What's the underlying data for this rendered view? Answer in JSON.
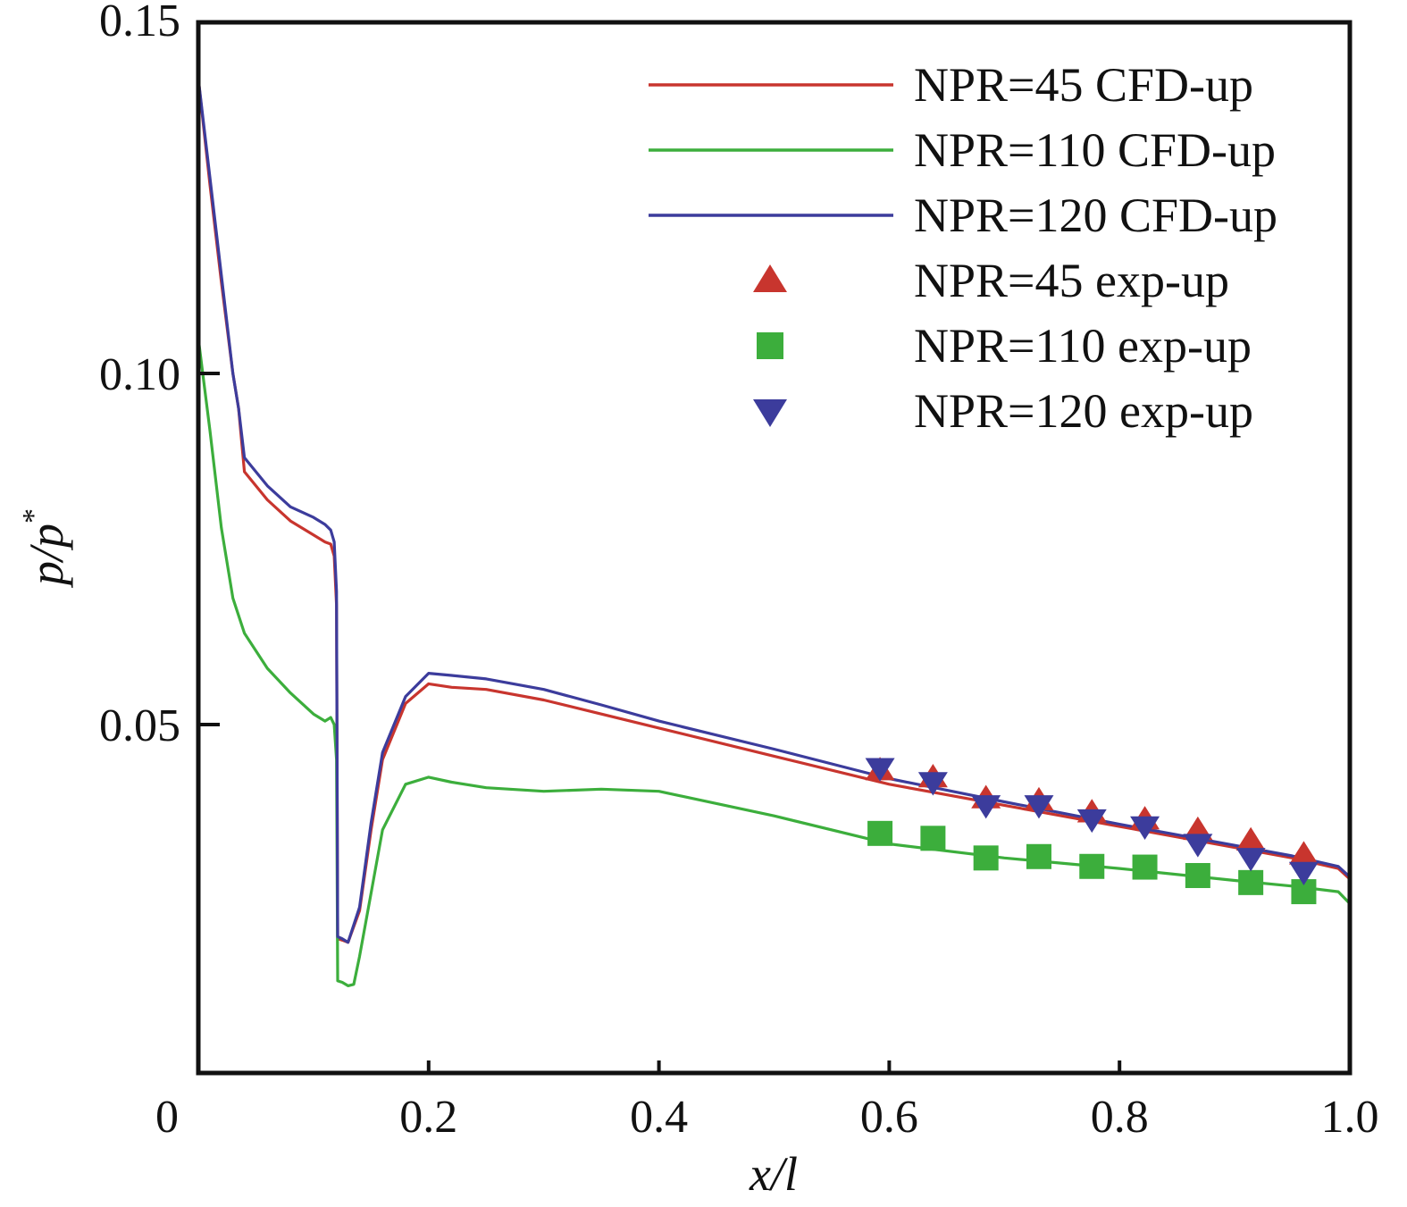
{
  "chart_data": {
    "type": "line",
    "title": "",
    "xlabel": "x/l",
    "ylabel_main": "p/p",
    "ylabel_sup": "*",
    "xlim": [
      0,
      1.0
    ],
    "ylim": [
      0,
      0.15
    ],
    "x_ticks": [
      0,
      0.2,
      0.4,
      0.6,
      0.8,
      1.0
    ],
    "x_tick_labels": [
      "0",
      "0.2",
      "0.4",
      "0.6",
      "0.8",
      "1.0"
    ],
    "y_ticks": [
      0.05,
      0.1,
      0.15
    ],
    "y_tick_labels": [
      "0.05",
      "0.10",
      "0.15"
    ],
    "legend_position": "top-right",
    "colors": {
      "red": "#c8352e",
      "green": "#3cae3c",
      "blue": "#3c3c9c"
    },
    "series": [
      {
        "name": "NPR=45 CFD-up",
        "kind": "line",
        "color": "#c8352e",
        "x": [
          0,
          0.01,
          0.02,
          0.03,
          0.035,
          0.04,
          0.06,
          0.08,
          0.1,
          0.11,
          0.115,
          0.118,
          0.12,
          0.121,
          0.125,
          0.13,
          0.14,
          0.15,
          0.16,
          0.18,
          0.2,
          0.22,
          0.25,
          0.3,
          0.35,
          0.4,
          0.5,
          0.6,
          0.7,
          0.8,
          0.9,
          0.95,
          0.99,
          1.0
        ],
        "y": [
          0.142,
          0.127,
          0.113,
          0.1,
          0.095,
          0.086,
          0.082,
          0.079,
          0.077,
          0.076,
          0.0757,
          0.074,
          0.067,
          0.0195,
          0.0193,
          0.019,
          0.0235,
          0.035,
          0.045,
          0.053,
          0.0558,
          0.0553,
          0.055,
          0.0535,
          0.0515,
          0.0495,
          0.0455,
          0.0415,
          0.0385,
          0.0355,
          0.0325,
          0.031,
          0.0295,
          0.028
        ]
      },
      {
        "name": "NPR=110 CFD-up",
        "kind": "line",
        "color": "#3cae3c",
        "x": [
          0,
          0.01,
          0.02,
          0.03,
          0.04,
          0.06,
          0.08,
          0.1,
          0.11,
          0.115,
          0.118,
          0.12,
          0.121,
          0.125,
          0.13,
          0.135,
          0.14,
          0.15,
          0.16,
          0.18,
          0.2,
          0.22,
          0.25,
          0.3,
          0.35,
          0.4,
          0.5,
          0.6,
          0.7,
          0.8,
          0.9,
          0.95,
          0.99,
          1.0
        ],
        "y": [
          0.105,
          0.092,
          0.078,
          0.068,
          0.063,
          0.058,
          0.0545,
          0.0515,
          0.0505,
          0.051,
          0.05,
          0.045,
          0.0135,
          0.0133,
          0.0128,
          0.013,
          0.017,
          0.026,
          0.035,
          0.0415,
          0.0425,
          0.0418,
          0.041,
          0.0405,
          0.0408,
          0.0405,
          0.037,
          0.033,
          0.031,
          0.0295,
          0.0278,
          0.027,
          0.0262,
          0.0245
        ]
      },
      {
        "name": "NPR=120 CFD-up",
        "kind": "line",
        "color": "#3c3c9c",
        "x": [
          0,
          0.01,
          0.02,
          0.03,
          0.035,
          0.04,
          0.06,
          0.08,
          0.1,
          0.11,
          0.115,
          0.118,
          0.12,
          0.121,
          0.125,
          0.13,
          0.14,
          0.15,
          0.16,
          0.18,
          0.2,
          0.22,
          0.25,
          0.3,
          0.35,
          0.4,
          0.5,
          0.6,
          0.7,
          0.8,
          0.9,
          0.95,
          0.99,
          1.0
        ],
        "y": [
          0.142,
          0.128,
          0.114,
          0.1,
          0.095,
          0.088,
          0.084,
          0.081,
          0.0795,
          0.0785,
          0.0777,
          0.076,
          0.069,
          0.0198,
          0.0195,
          0.019,
          0.024,
          0.036,
          0.046,
          0.054,
          0.0573,
          0.057,
          0.0565,
          0.055,
          0.0528,
          0.0505,
          0.0465,
          0.0423,
          0.039,
          0.0358,
          0.0328,
          0.0313,
          0.0298,
          0.0283
        ]
      },
      {
        "name": "NPR=45 exp-up",
        "kind": "marker",
        "marker": "triangle-up",
        "color": "#c8352e",
        "x": [
          0.592,
          0.638,
          0.684,
          0.73,
          0.776,
          0.822,
          0.868,
          0.914,
          0.96
        ],
        "y": [
          0.0435,
          0.0425,
          0.0395,
          0.0392,
          0.0375,
          0.0365,
          0.035,
          0.0335,
          0.0315
        ]
      },
      {
        "name": "NPR=110 exp-up",
        "kind": "marker",
        "marker": "square",
        "color": "#3cae3c",
        "x": [
          0.592,
          0.638,
          0.684,
          0.73,
          0.776,
          0.822,
          0.868,
          0.914,
          0.96
        ],
        "y": [
          0.0345,
          0.0338,
          0.031,
          0.0312,
          0.0298,
          0.0297,
          0.0285,
          0.0275,
          0.0262
        ]
      },
      {
        "name": "NPR=120 exp-up",
        "kind": "marker",
        "marker": "triangle-down",
        "color": "#3c3c9c",
        "x": [
          0.592,
          0.638,
          0.684,
          0.73,
          0.776,
          0.822,
          0.868,
          0.914,
          0.96
        ],
        "y": [
          0.0438,
          0.0418,
          0.0385,
          0.0385,
          0.0365,
          0.0355,
          0.033,
          0.031,
          0.029
        ]
      }
    ]
  }
}
